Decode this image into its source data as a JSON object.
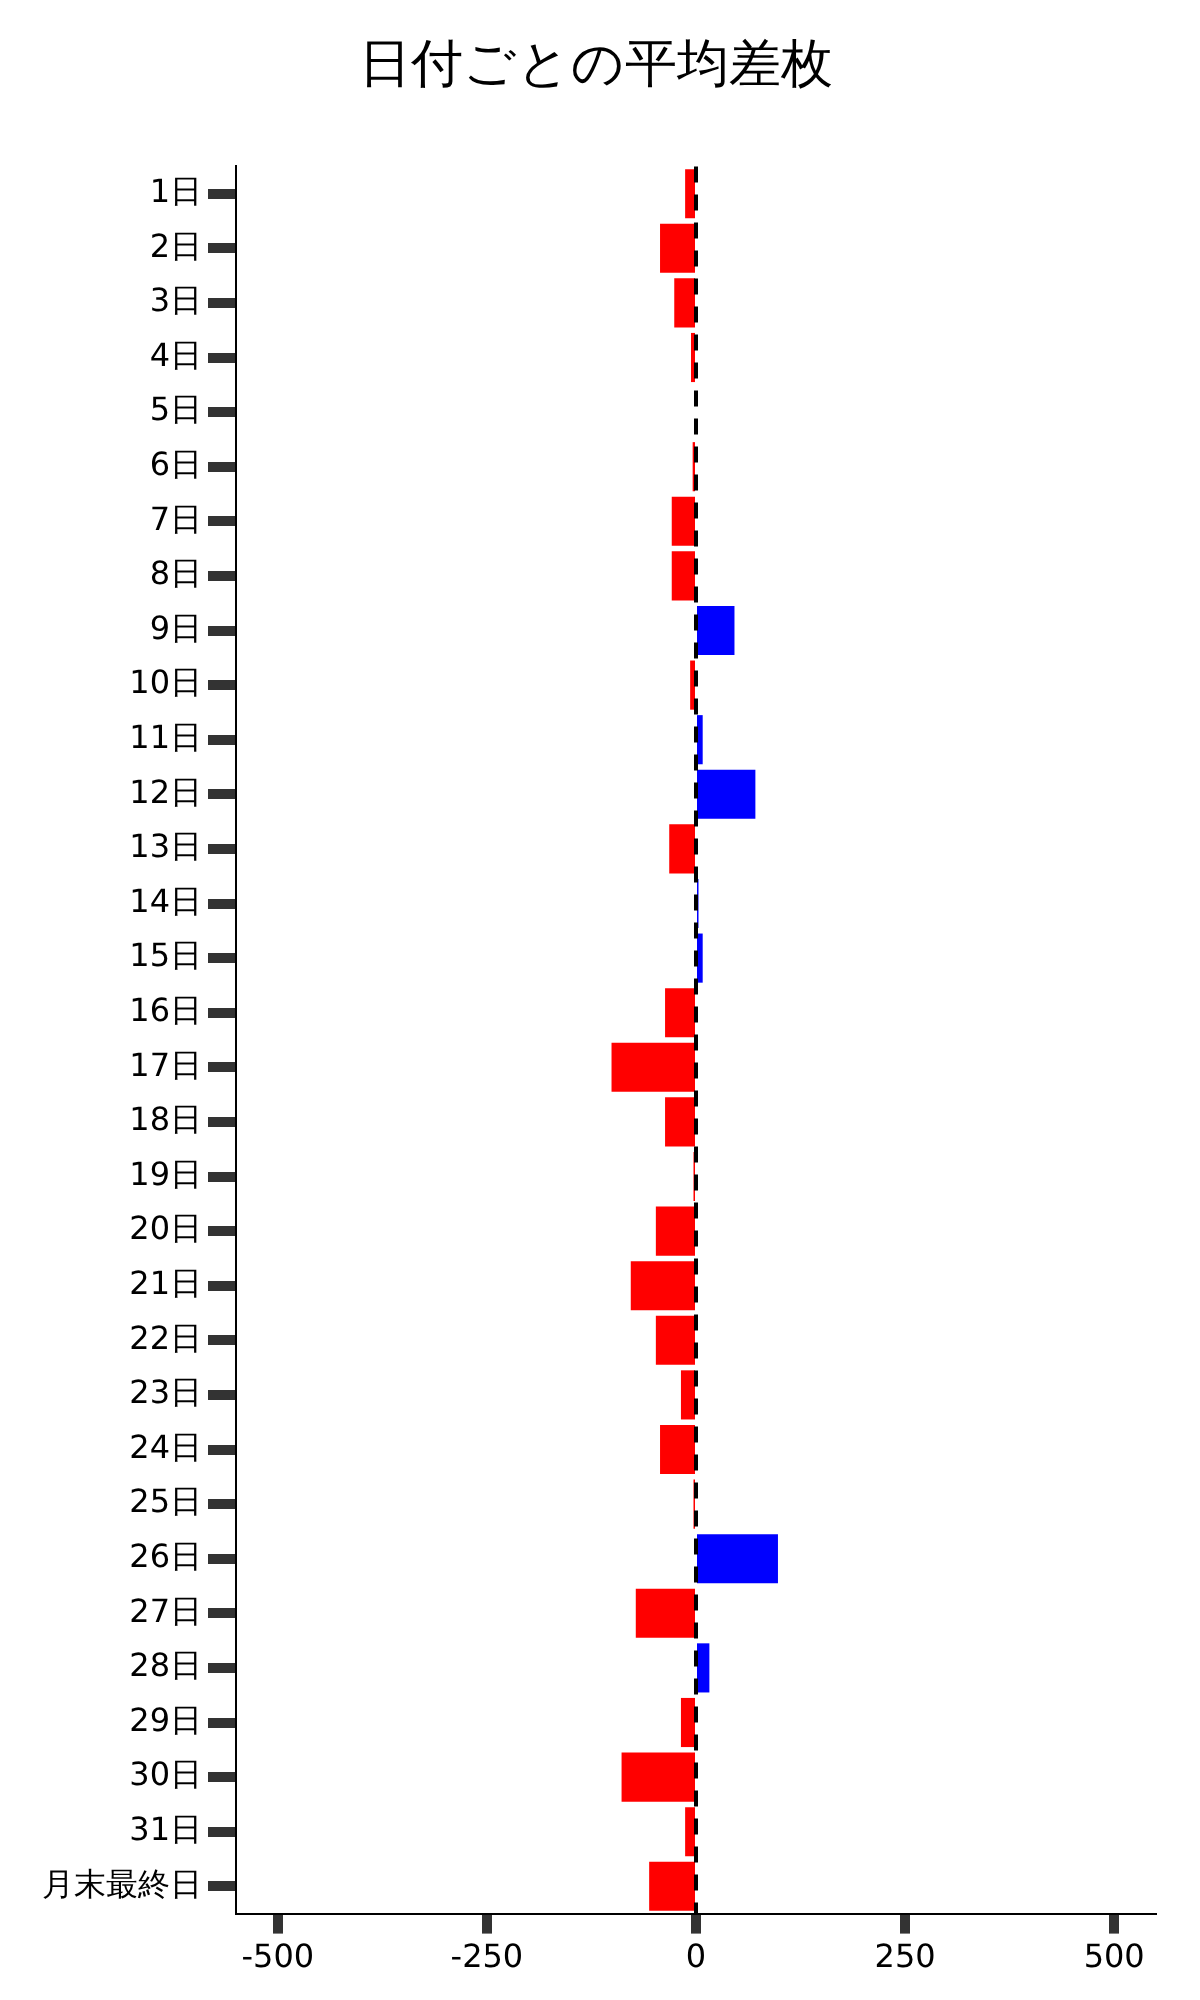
{
  "chart_data": {
    "type": "bar",
    "orientation": "horizontal",
    "title": "日付ごとの平均差枚",
    "categories": [
      "1日",
      "2日",
      "3日",
      "4日",
      "5日",
      "6日",
      "7日",
      "8日",
      "9日",
      "10日",
      "11日",
      "12日",
      "13日",
      "14日",
      "15日",
      "16日",
      "17日",
      "18日",
      "19日",
      "20日",
      "21日",
      "22日",
      "23日",
      "24日",
      "25日",
      "26日",
      "27日",
      "28日",
      "29日",
      "30日",
      "31日",
      "月末最終日"
    ],
    "values": [
      -13,
      -43,
      -26,
      -6,
      null,
      -4,
      -29,
      -29,
      46,
      -7,
      8,
      71,
      -32,
      3,
      8,
      -37,
      -101,
      -37,
      -3,
      -48,
      -78,
      -48,
      -18,
      -43,
      -3,
      98,
      -72,
      16,
      -18,
      -89,
      -13,
      -56
    ],
    "colors": [
      "#ff0000",
      "#ff0000",
      "#ff0000",
      "#ff0000",
      "#ff0000",
      "#ff0000",
      "#ff0000",
      "#ff0000",
      "#0000ff",
      "#ff0000",
      "#0000ff",
      "#0000ff",
      "#ff0000",
      "#0000ff",
      "#0000ff",
      "#ff0000",
      "#ff0000",
      "#ff0000",
      "#ff0000",
      "#ff0000",
      "#ff0000",
      "#ff0000",
      "#ff0000",
      "#ff0000",
      "#ff0000",
      "#0000ff",
      "#ff0000",
      "#0000ff",
      "#ff0000",
      "#ff0000",
      "#ff0000",
      "#ff0000"
    ],
    "xlim": [
      -550,
      550
    ],
    "xticks": [
      -500,
      -250,
      0,
      250,
      500
    ],
    "ref_lines": [
      {
        "axis": "x",
        "value": 0,
        "color": "#000000",
        "line_style": "dashed"
      }
    ],
    "grid": false,
    "legend": false
  }
}
